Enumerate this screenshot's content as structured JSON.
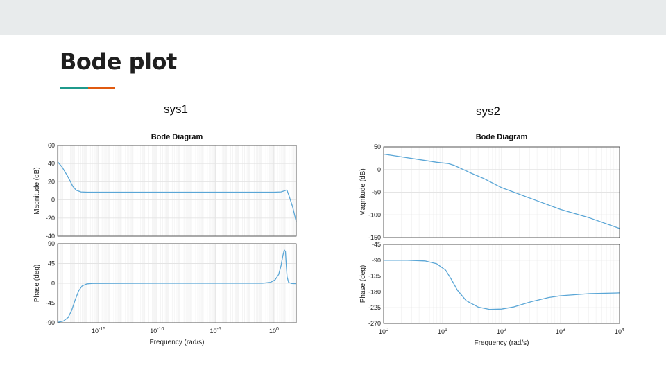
{
  "slide": {
    "title": "Bode plot",
    "accent_colors": [
      "#1f9a8c",
      "#e05a10"
    ],
    "subplot_labels": [
      "sys1",
      "sys2"
    ]
  },
  "style": {
    "line_color": "#5aa6d6",
    "grid_color": "#e4e4e4",
    "axis_color": "#333333"
  },
  "chart_data": [
    {
      "type": "line",
      "name": "sys1",
      "title": "Bode Diagram",
      "xlabel": "Frequency  (rad/s)",
      "xscale": "log",
      "x_range_log10": [
        -18.5,
        1.9
      ],
      "xticks": [
        {
          "exp": -15,
          "label": "10",
          "sup": "-15"
        },
        {
          "exp": -10,
          "label": "10",
          "sup": "-10"
        },
        {
          "exp": -5,
          "label": "10",
          "sup": "-5"
        },
        {
          "exp": 0,
          "label": "10",
          "sup": "0"
        }
      ],
      "grid": true,
      "panels": [
        {
          "ylabel": "Magnitude (dB)",
          "ylim": [
            -40,
            60
          ],
          "yticks": [
            60,
            40,
            20,
            0,
            -20,
            -40
          ],
          "points_log10x_y": [
            [
              -18.5,
              42
            ],
            [
              -18.1,
              36
            ],
            [
              -17.6,
              25
            ],
            [
              -17.2,
              15
            ],
            [
              -16.9,
              10.5
            ],
            [
              -16.5,
              8.8
            ],
            [
              -16.0,
              8.5
            ],
            [
              -10,
              8.5
            ],
            [
              0,
              8.5
            ],
            [
              0.6,
              8.8
            ],
            [
              0.9,
              10
            ],
            [
              1.1,
              11
            ],
            [
              1.3,
              4
            ],
            [
              1.6,
              -8
            ],
            [
              1.9,
              -24
            ]
          ]
        },
        {
          "ylabel": "Phase (deg)",
          "ylim": [
            -90,
            90
          ],
          "yticks": [
            90,
            45,
            0,
            -45,
            -90
          ],
          "points_log10x_y": [
            [
              -18.5,
              -89
            ],
            [
              -18.0,
              -86
            ],
            [
              -17.6,
              -78
            ],
            [
              -17.3,
              -62
            ],
            [
              -17.0,
              -38
            ],
            [
              -16.7,
              -17
            ],
            [
              -16.4,
              -6
            ],
            [
              -16.0,
              -1.5
            ],
            [
              -15.5,
              -0.3
            ],
            [
              -10,
              0
            ],
            [
              -1.0,
              0
            ],
            [
              -0.3,
              2
            ],
            [
              0.1,
              8
            ],
            [
              0.4,
              20
            ],
            [
              0.6,
              40
            ],
            [
              0.75,
              62
            ],
            [
              0.88,
              76
            ],
            [
              0.98,
              72
            ],
            [
              1.05,
              40
            ],
            [
              1.12,
              15
            ],
            [
              1.25,
              2
            ],
            [
              1.5,
              -0.5
            ],
            [
              1.9,
              -1
            ]
          ]
        }
      ]
    },
    {
      "type": "line",
      "name": "sys2",
      "title": "Bode Diagram",
      "xlabel": "Frequency  (rad/s)",
      "xscale": "log",
      "x_range_log10": [
        0,
        4
      ],
      "xticks": [
        {
          "exp": 0,
          "label": "10",
          "sup": "0"
        },
        {
          "exp": 1,
          "label": "10",
          "sup": "1"
        },
        {
          "exp": 2,
          "label": "10",
          "sup": "2"
        },
        {
          "exp": 3,
          "label": "10",
          "sup": "3"
        },
        {
          "exp": 4,
          "label": "10",
          "sup": "4"
        }
      ],
      "grid": true,
      "panels": [
        {
          "ylabel": "Magnitude (dB)",
          "ylim": [
            -150,
            50
          ],
          "yticks": [
            50,
            0,
            -50,
            -100,
            -150
          ],
          "points_log10x_y": [
            [
              0,
              34
            ],
            [
              0.3,
              28
            ],
            [
              0.6,
              22
            ],
            [
              0.9,
              16
            ],
            [
              1.1,
              13
            ],
            [
              1.2,
              9
            ],
            [
              1.3,
              3
            ],
            [
              1.5,
              -9
            ],
            [
              1.7,
              -20
            ],
            [
              2.0,
              -40
            ],
            [
              2.5,
              -64
            ],
            [
              3.0,
              -88
            ],
            [
              3.5,
              -107
            ],
            [
              4.0,
              -130
            ]
          ]
        },
        {
          "ylabel": "Phase (deg)",
          "ylim": [
            -270,
            -45
          ],
          "yticks": [
            -45,
            -90,
            -135,
            -180,
            -225,
            -270
          ],
          "points_log10x_y": [
            [
              0,
              -90
            ],
            [
              0.4,
              -90
            ],
            [
              0.7,
              -92
            ],
            [
              0.9,
              -100
            ],
            [
              1.05,
              -118
            ],
            [
              1.15,
              -145
            ],
            [
              1.25,
              -175
            ],
            [
              1.4,
              -205
            ],
            [
              1.6,
              -223
            ],
            [
              1.8,
              -230
            ],
            [
              2.0,
              -229
            ],
            [
              2.2,
              -223
            ],
            [
              2.5,
              -208
            ],
            [
              2.8,
              -196
            ],
            [
              3.0,
              -191
            ],
            [
              3.5,
              -185
            ],
            [
              4.0,
              -183
            ]
          ]
        }
      ]
    }
  ]
}
